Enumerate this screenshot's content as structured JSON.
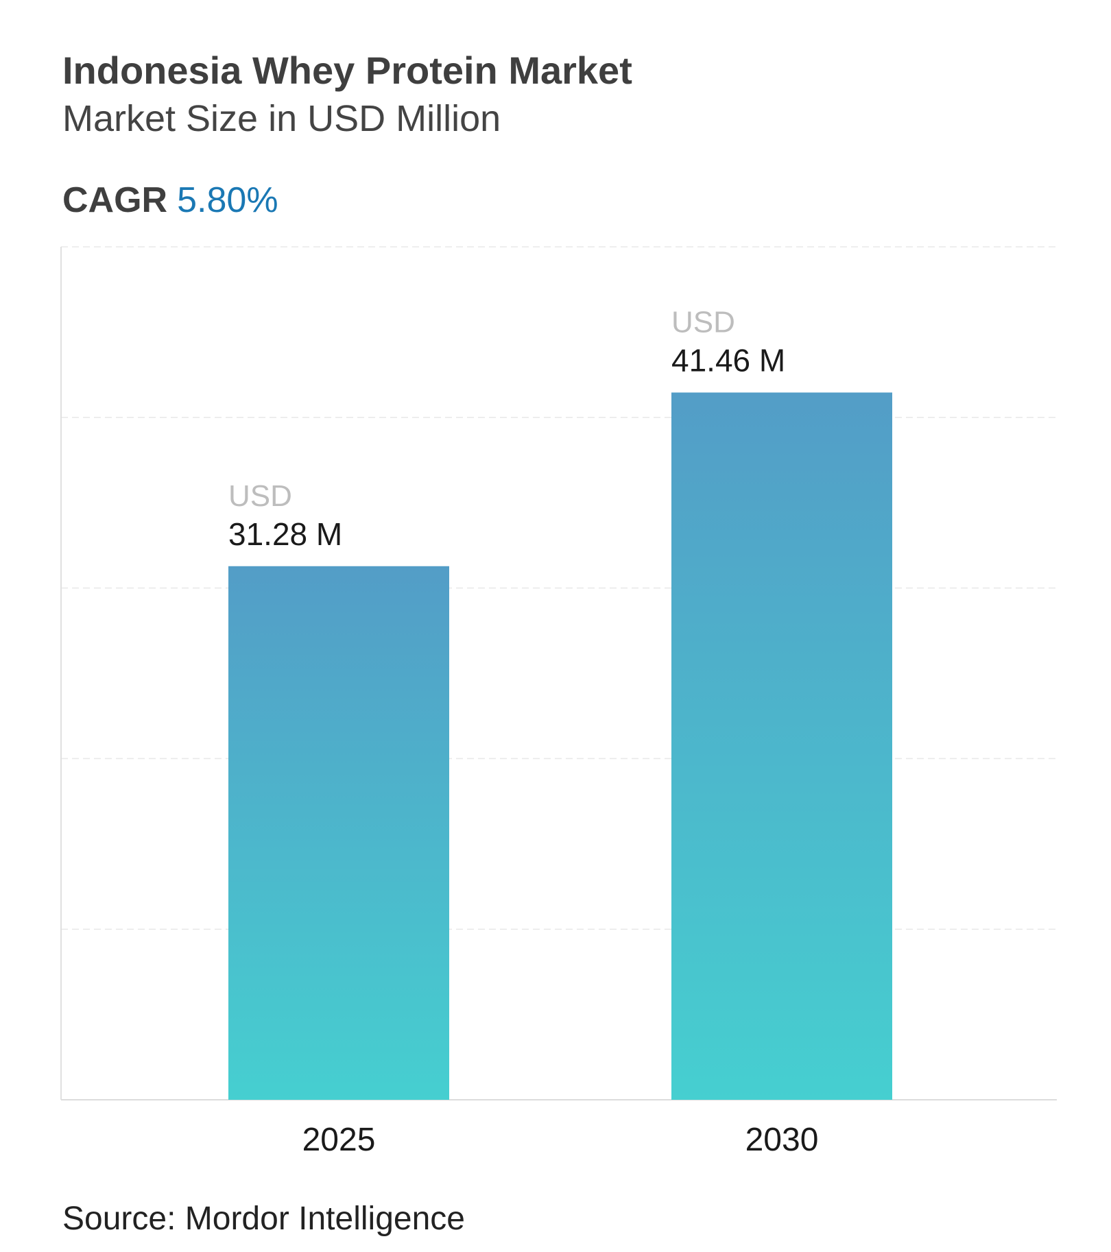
{
  "header": {
    "title": "Indonesia Whey Protein Market",
    "subtitle": "Market Size in USD Million",
    "cagr_label": "CAGR",
    "cagr_value": "5.80%"
  },
  "chart_data": {
    "type": "bar",
    "title": "Indonesia Whey Protein Market",
    "subtitle": "Market Size in USD Million",
    "categories": [
      "2025",
      "2030"
    ],
    "values": [
      31.28,
      41.46
    ],
    "unit_prefix": "USD",
    "data_labels": [
      "31.28 M",
      "41.46 M"
    ],
    "xlabel": "",
    "ylabel": "",
    "ylim": [
      0,
      50
    ],
    "grid": true,
    "colors": {
      "top": "#539dc7",
      "bottom": "#46cfd0",
      "cagr": "#1a78b4"
    }
  },
  "footer": {
    "source": "Source: Mordor Intelligence"
  }
}
